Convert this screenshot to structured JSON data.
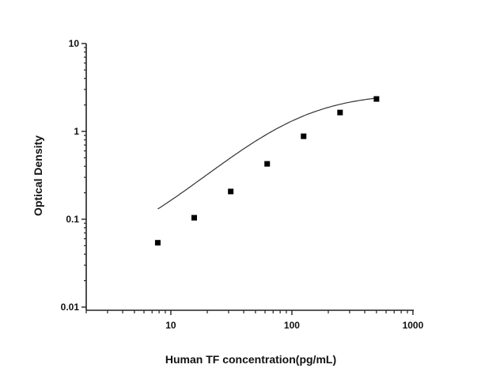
{
  "chart_data": {
    "type": "scatter",
    "title": "",
    "xlabel": "Human TF concentration(pg/mL)",
    "ylabel": "Optical Density",
    "xscale": "log",
    "yscale": "log",
    "xlim": [
      2,
      1000
    ],
    "ylim": [
      0.0092,
      10
    ],
    "x_ticks": [
      10,
      100,
      1000
    ],
    "x_tick_labels": [
      "10",
      "100",
      "1000"
    ],
    "y_ticks": [
      0.01,
      0.1,
      1,
      10
    ],
    "y_tick_labels": [
      "0.01",
      "0.1",
      "1",
      "10"
    ],
    "grid": false,
    "legend": null,
    "series": [
      {
        "name": "Standard points",
        "marker": "square",
        "color": "#000000",
        "x": [
          7.8,
          15.6,
          31.25,
          62.5,
          125,
          250,
          500
        ],
        "y": [
          0.054,
          0.104,
          0.207,
          0.427,
          0.88,
          1.64,
          2.34
        ]
      },
      {
        "name": "Fitted curve",
        "style": "line",
        "color": "#000000",
        "x_range": [
          7.8,
          500
        ],
        "start_y": 0.065,
        "end_y": 2.34
      }
    ]
  }
}
